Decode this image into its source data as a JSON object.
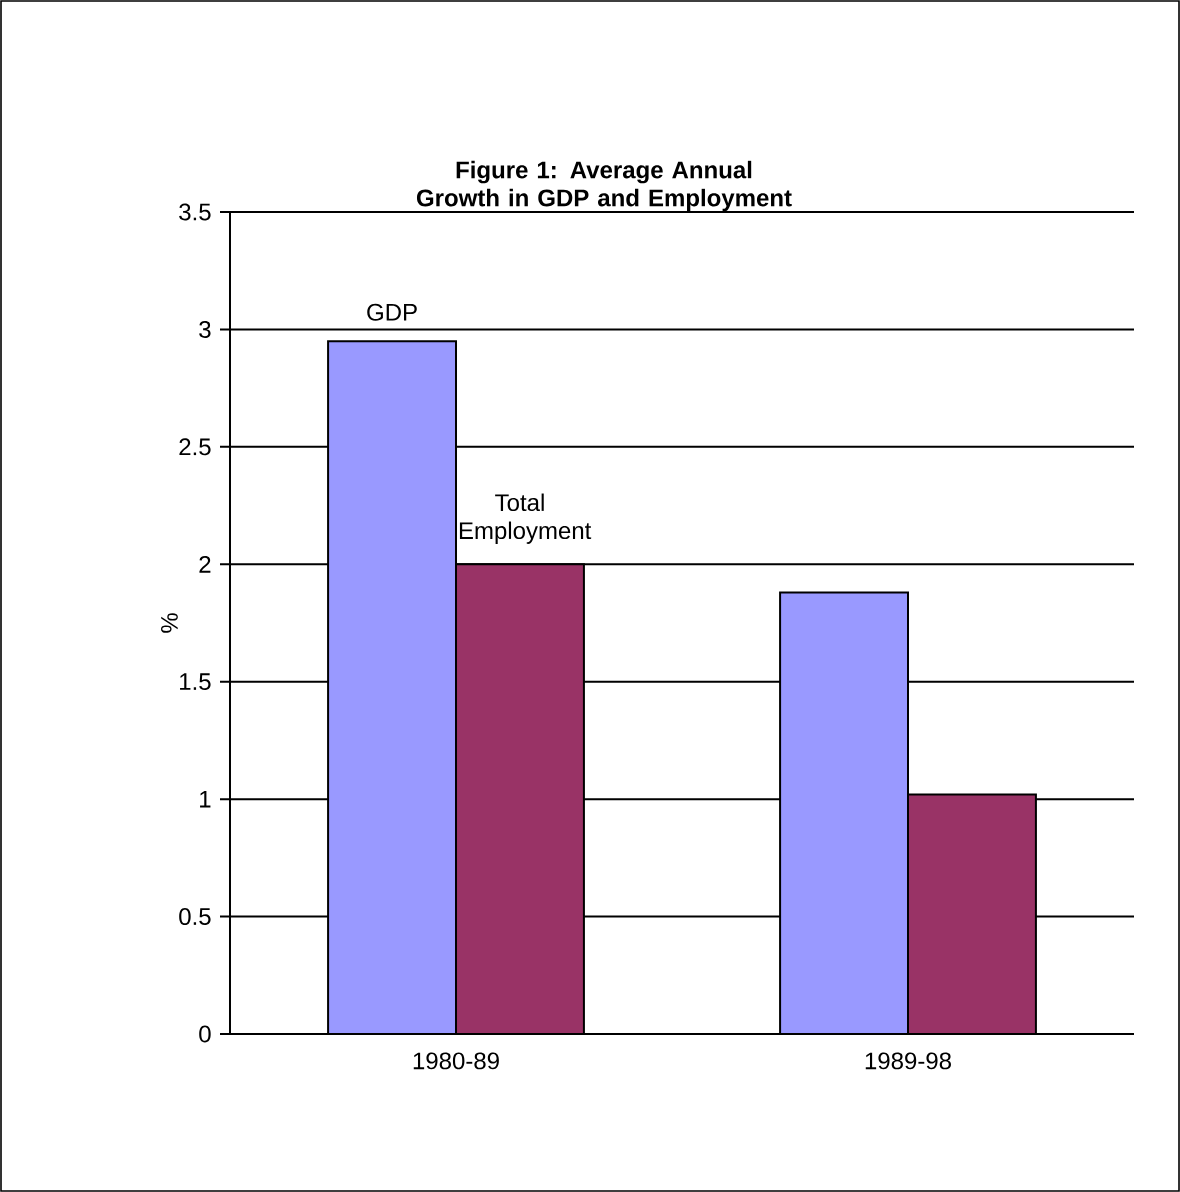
{
  "chart_data": {
    "type": "bar",
    "title": "Figure 1:  Average Annual Growth in GDP and Employment",
    "ylabel": "%",
    "categories": [
      "1980-89",
      "1989-98"
    ],
    "series": [
      {
        "name": "GDP",
        "color": "#9999ff",
        "values": [
          2.95,
          1.88
        ]
      },
      {
        "name": "Total Employment",
        "color": "#993366",
        "values": [
          2.0,
          1.02
        ]
      }
    ],
    "ylim": [
      0,
      3.5
    ],
    "yticks": [
      0,
      0.5,
      1,
      1.5,
      2,
      2.5,
      3,
      3.5
    ],
    "grid": "y",
    "legend": false
  }
}
